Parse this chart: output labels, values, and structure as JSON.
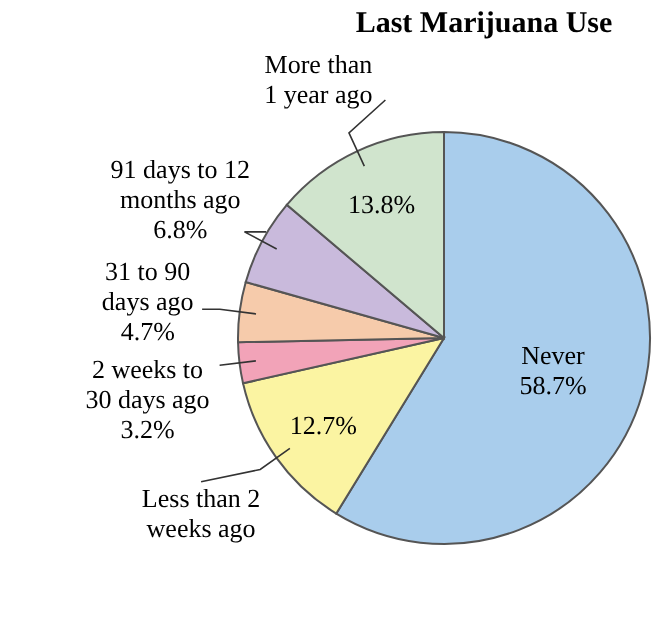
{
  "chart_data": {
    "type": "pie",
    "title": "Last Marijuana Use",
    "categories": [
      "Never",
      "Less than 2 weeks ago",
      "2 weeks to 30 days ago",
      "31 to 90 days ago",
      "91 days to 12 months ago",
      "More than 1 year ago"
    ],
    "values": [
      58.7,
      12.7,
      3.2,
      4.7,
      6.8,
      13.8
    ],
    "colors": [
      "#a9cdec",
      "#fbf4a2",
      "#f2a3b8",
      "#f6cbab",
      "#c9badc",
      "#d0e4cd"
    ],
    "value_labels": [
      "58.7%",
      "12.7%",
      "3.2%",
      "4.7%",
      "6.8%",
      "13.8%"
    ]
  }
}
